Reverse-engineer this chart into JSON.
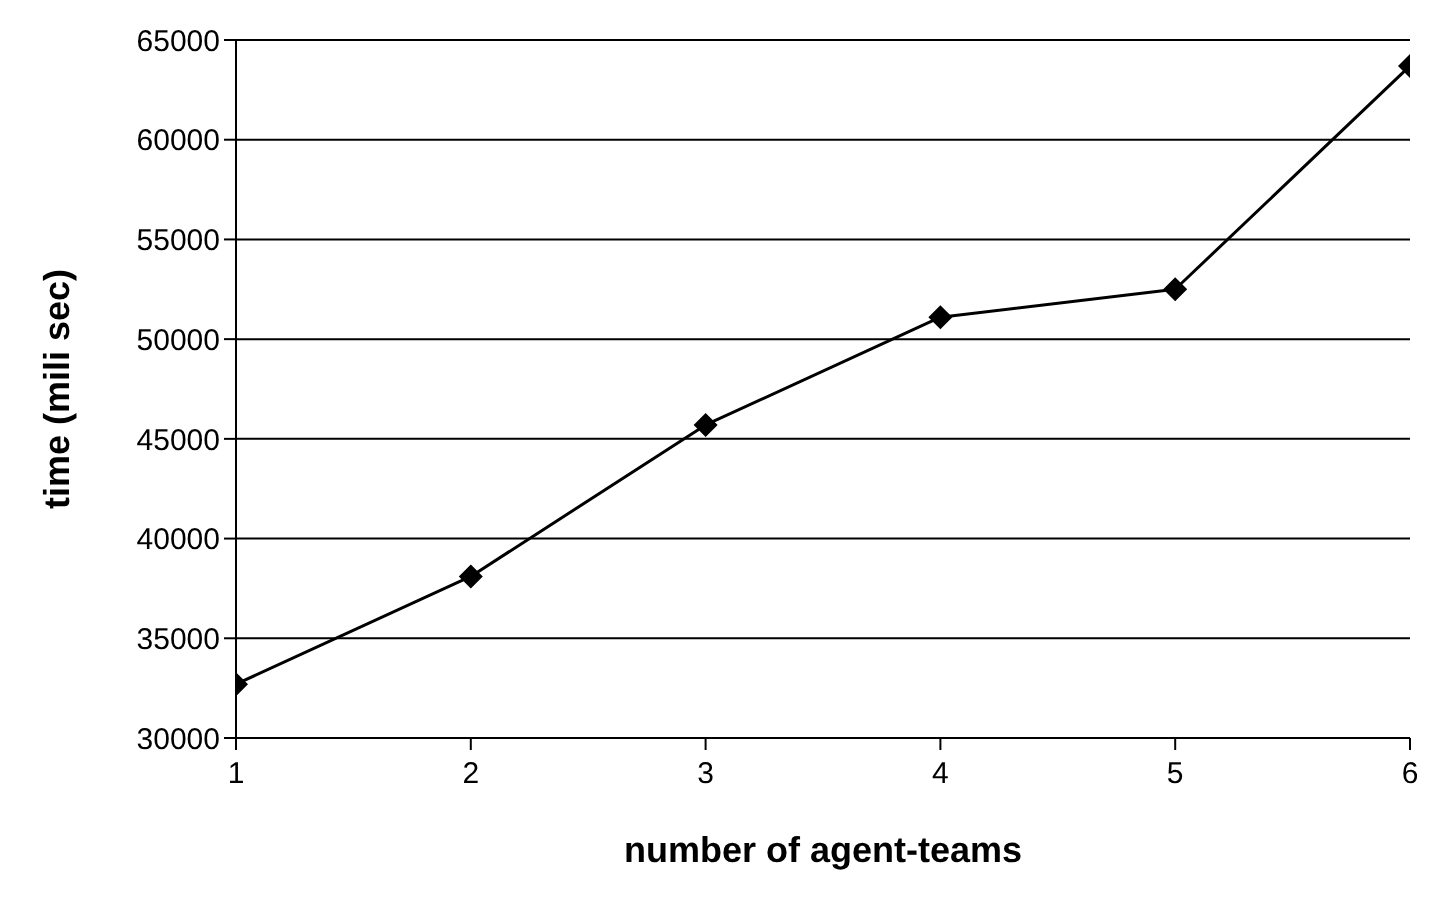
{
  "chart_data": {
    "type": "line",
    "xlabel": "number of agent-teams",
    "ylabel": "time (mili sec)",
    "x": [
      1,
      2,
      3,
      4,
      5,
      6
    ],
    "values": [
      32700,
      38100,
      45700,
      51100,
      52500,
      63700
    ],
    "color": "#000000",
    "xlim": [
      1,
      6
    ],
    "xticks": [
      1,
      2,
      3,
      4,
      5,
      6
    ],
    "ylim": [
      30000,
      65000
    ],
    "yticks": [
      30000,
      35000,
      40000,
      45000,
      50000,
      55000,
      60000,
      65000
    ],
    "grid": "y",
    "marker": "diamond",
    "line_style": "solid"
  }
}
